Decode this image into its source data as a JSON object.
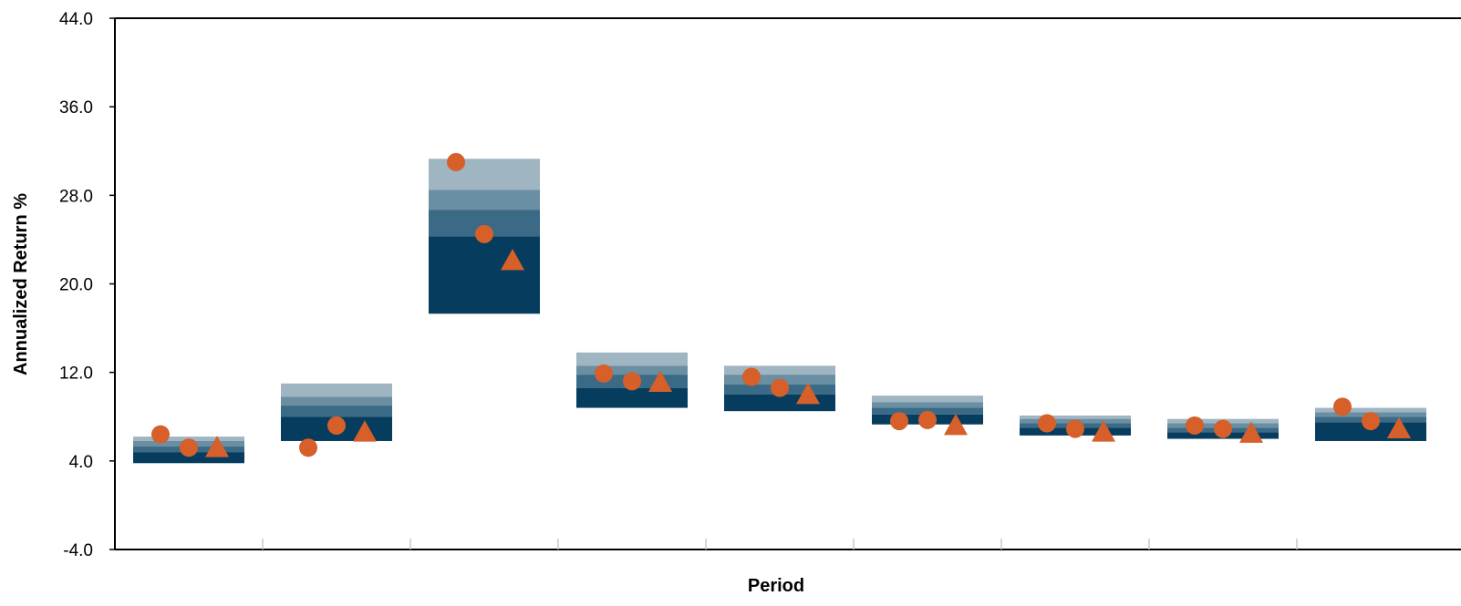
{
  "colors": {
    "band_95_75": "#a0b5c2",
    "band_75_50": "#6a8ea2",
    "band_50_25": "#3a6a86",
    "band_25_05": "#063d5e",
    "marker": "#d65f2a",
    "axis": "#000000"
  },
  "chart_data": {
    "type": "floating-bar-percentile",
    "xlabel": "Period",
    "ylabel": "Annualized Return %",
    "ylim": [
      -4.0,
      44.0
    ],
    "yticks": [
      "44.0",
      "36.0",
      "28.0",
      "20.0",
      "12.0",
      "4.0",
      "-4.0"
    ],
    "ytick_values": [
      44,
      36,
      28,
      20,
      12,
      4,
      -4
    ],
    "categories": [
      "",
      "",
      "",
      "",
      "",
      "",
      "",
      "",
      ""
    ],
    "grid": false,
    "percentile_bands": [
      {
        "p95": 6.2,
        "p75": 5.8,
        "p50": 5.3,
        "p25": 4.8,
        "p05": 3.8
      },
      {
        "p95": 11.0,
        "p75": 9.8,
        "p50": 9.0,
        "p25": 8.0,
        "p05": 5.8
      },
      {
        "p95": 31.3,
        "p75": 28.5,
        "p50": 26.7,
        "p25": 24.3,
        "p05": 17.3
      },
      {
        "p95": 13.8,
        "p75": 12.6,
        "p50": 11.8,
        "p25": 10.6,
        "p05": 8.8
      },
      {
        "p95": 12.6,
        "p75": 11.8,
        "p50": 10.9,
        "p25": 10.0,
        "p05": 8.5
      },
      {
        "p95": 9.9,
        "p75": 9.3,
        "p50": 8.8,
        "p25": 8.2,
        "p05": 7.3
      },
      {
        "p95": 8.1,
        "p75": 7.8,
        "p50": 7.4,
        "p25": 7.0,
        "p05": 6.3
      },
      {
        "p95": 7.8,
        "p75": 7.4,
        "p50": 7.0,
        "p25": 6.6,
        "p05": 6.0
      },
      {
        "p95": 8.8,
        "p75": 8.4,
        "p50": 8.0,
        "p25": 7.5,
        "p05": 5.8
      }
    ],
    "series": [
      {
        "marker": "circle",
        "values": [
          6.4,
          5.2,
          31.0,
          11.9,
          11.6,
          7.6,
          7.4,
          7.2,
          8.9
        ]
      },
      {
        "marker": "circle",
        "values": [
          5.2,
          7.2,
          24.5,
          11.2,
          10.6,
          7.7,
          6.9,
          6.9,
          7.6
        ]
      },
      {
        "marker": "triangle",
        "values": [
          5.2,
          6.6,
          22.1,
          11.1,
          10.0,
          7.2,
          6.6,
          6.5,
          6.9
        ]
      }
    ]
  }
}
